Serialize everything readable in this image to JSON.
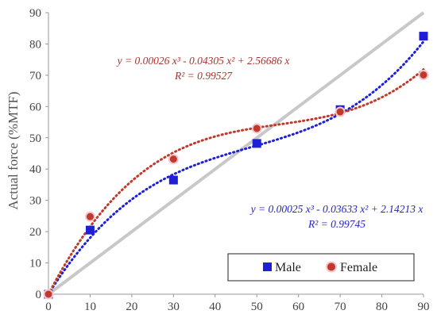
{
  "chart_data": {
    "type": "scatter",
    "ylabel": "Actual force (%MTF)",
    "xlim": [
      0,
      90
    ],
    "ylim": [
      0,
      90
    ],
    "x_ticks": [
      0,
      10,
      20,
      30,
      40,
      50,
      60,
      70,
      80,
      90
    ],
    "y_ticks": [
      0,
      10,
      20,
      30,
      40,
      50,
      60,
      70,
      80,
      90
    ],
    "grid": false,
    "reference_line": {
      "x": [
        0,
        90
      ],
      "y": [
        0,
        90
      ],
      "color": "#c8c8c8"
    },
    "series": [
      {
        "name": "Male",
        "marker": "square",
        "color": "#1f1fd6",
        "x": [
          0,
          10,
          30,
          50,
          70,
          90
        ],
        "y": [
          0,
          20.5,
          36.5,
          48.2,
          59,
          82.5
        ],
        "trendline": {
          "equation": "y = 0.00025 x³ - 0.03633 x² + 2.14213 x",
          "r2": "R² = 0.99745",
          "coefficients": [
            0.00025,
            -0.03633,
            2.14213
          ]
        }
      },
      {
        "name": "Female",
        "marker": "circle",
        "color": "#c0392b",
        "x": [
          0,
          10,
          30,
          50,
          70,
          90
        ],
        "y": [
          0,
          24.8,
          43.2,
          53,
          58.3,
          70.1
        ],
        "trendline": {
          "equation": "y = 0.00026 x³ - 0.04305 x² + 2.56686 x",
          "r2": "R² = 0.99527",
          "coefficients": [
            0.00026,
            -0.04305,
            2.56686
          ]
        }
      }
    ],
    "legend": {
      "placement": "bottom-right",
      "entries": [
        "Male",
        "Female"
      ]
    }
  }
}
